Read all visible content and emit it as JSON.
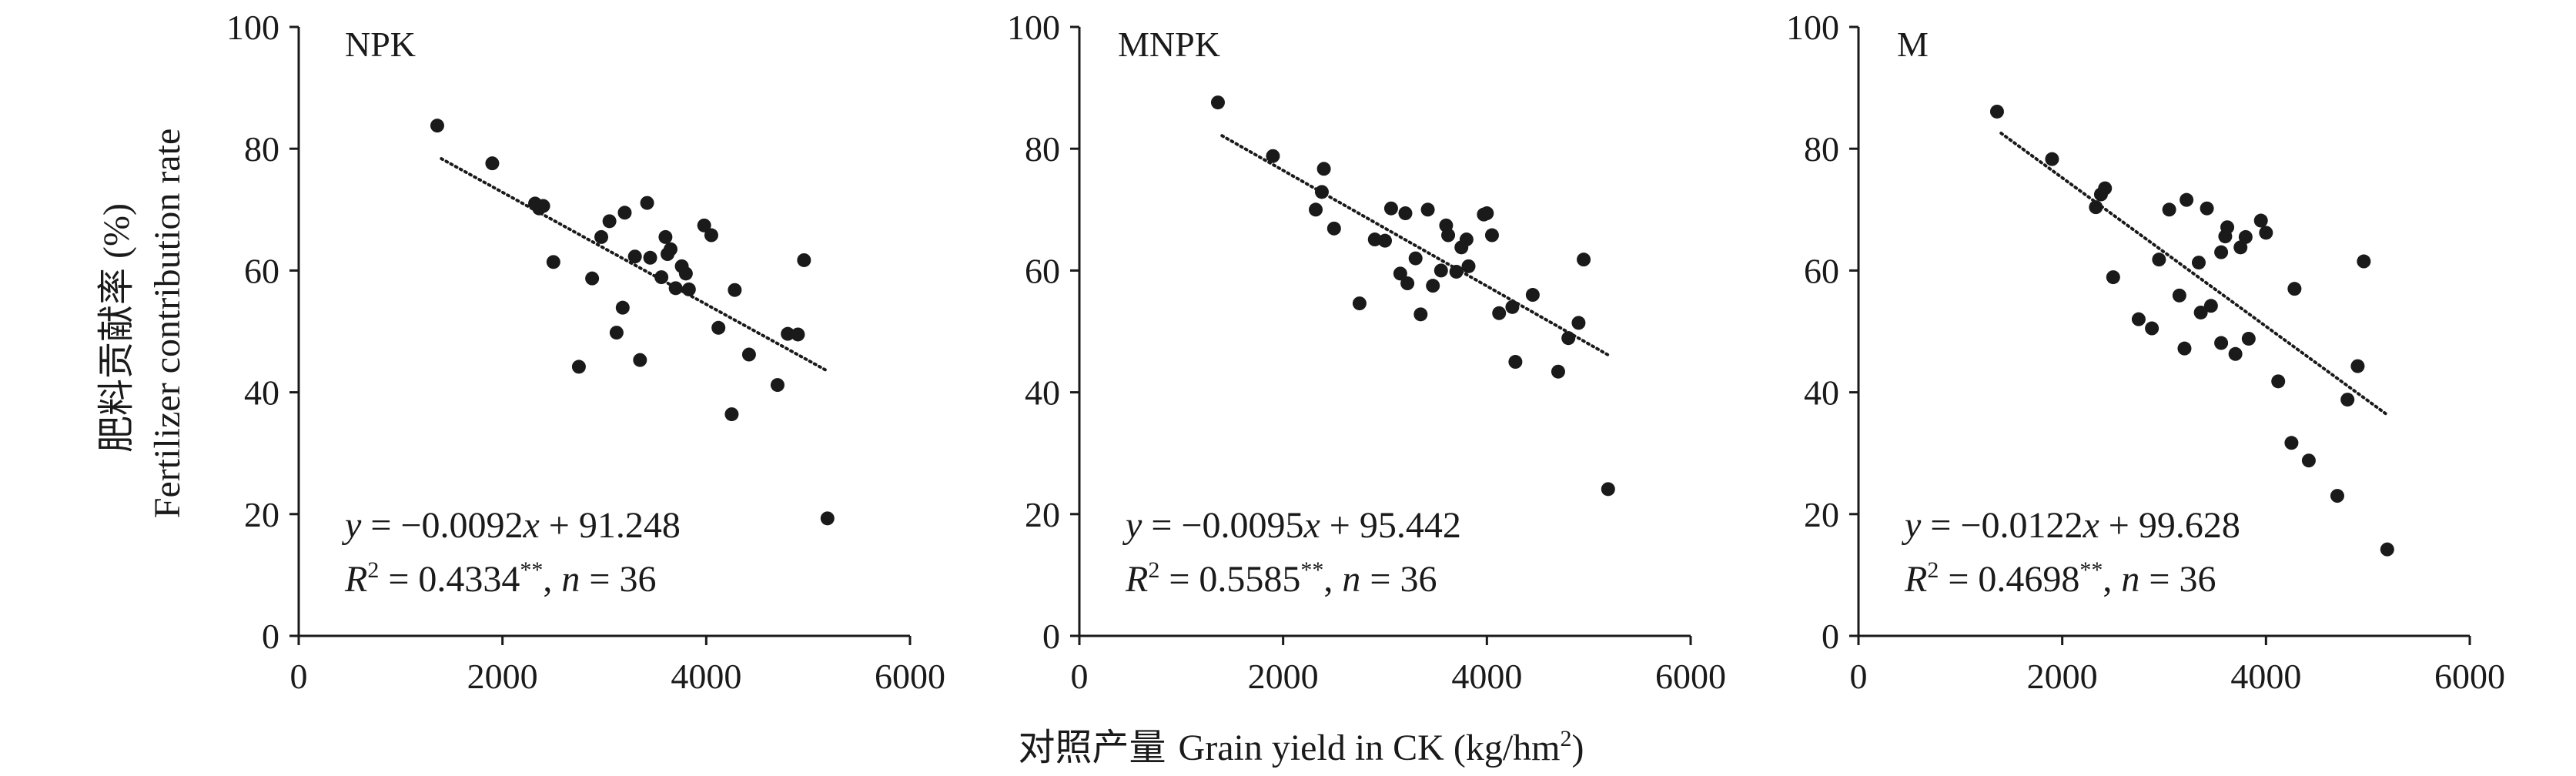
{
  "figure": {
    "ylabel_cn": "肥料贡献率 (%)",
    "ylabel_en": "Fertilizer contribution rate",
    "xlabel_cn": "对照产量",
    "xlabel_en": "Grain yield in CK (kg/hm",
    "xlabel_sup": "2",
    "xlabel_close": ")"
  },
  "chart_data": [
    {
      "type": "scatter",
      "title": "NPK",
      "xlabel": "对照产量 Grain yield in CK (kg/hm2)",
      "ylabel": "肥料贡献率 (%) Fertilizer contribution rate",
      "xlim": [
        0,
        6000
      ],
      "ylim": [
        0,
        100
      ],
      "xticks": [
        0,
        2000,
        4000,
        6000
      ],
      "yticks": [
        0,
        20,
        40,
        60,
        80,
        100
      ],
      "grid": false,
      "trendline": {
        "style": "dotted",
        "slope": -0.0092,
        "intercept": 91.248,
        "x_range": [
          1400,
          5200
        ]
      },
      "equation": {
        "y_pre": "y",
        "eq_mid": " = −0.0092",
        "x_var": "x",
        "eq_tail": " + 91.248",
        "r_var": "R",
        "r_sup": "2",
        "r_val": " = 0.4334",
        "sig": "**",
        "n_sep": ", ",
        "n_var": "n",
        "n_val": " = 36"
      },
      "points": [
        [
          1360,
          83.8
        ],
        [
          1900,
          77.6
        ],
        [
          2320,
          71.0
        ],
        [
          2360,
          70.2
        ],
        [
          2400,
          70.6
        ],
        [
          2500,
          61.4
        ],
        [
          2750,
          44.2
        ],
        [
          2880,
          58.7
        ],
        [
          2970,
          65.5
        ],
        [
          3050,
          68.1
        ],
        [
          3120,
          49.8
        ],
        [
          3180,
          53.9
        ],
        [
          3200,
          69.5
        ],
        [
          3300,
          62.3
        ],
        [
          3350,
          45.3
        ],
        [
          3420,
          71.1
        ],
        [
          3450,
          62.1
        ],
        [
          3560,
          58.9
        ],
        [
          3600,
          65.5
        ],
        [
          3620,
          62.7
        ],
        [
          3700,
          57.1
        ],
        [
          3760,
          60.7
        ],
        [
          3800,
          59.5
        ],
        [
          3830,
          56.9
        ],
        [
          3980,
          67.4
        ],
        [
          4050,
          65.8
        ],
        [
          4120,
          50.6
        ],
        [
          4250,
          36.4
        ],
        [
          4280,
          56.8
        ],
        [
          4420,
          46.2
        ],
        [
          4700,
          41.2
        ],
        [
          4800,
          49.6
        ],
        [
          4900,
          49.5
        ],
        [
          4960,
          61.7
        ],
        [
          5190,
          19.3
        ],
        [
          3650,
          63.5
        ]
      ]
    },
    {
      "type": "scatter",
      "title": "MNPK",
      "xlabel": "对照产量 Grain yield in CK (kg/hm2)",
      "ylabel": "肥料贡献率 (%) Fertilizer contribution rate",
      "xlim": [
        0,
        6000
      ],
      "ylim": [
        0,
        100
      ],
      "xticks": [
        0,
        2000,
        4000,
        6000
      ],
      "yticks": [
        0,
        20,
        40,
        60,
        80,
        100
      ],
      "grid": false,
      "trendline": {
        "style": "dotted",
        "slope": -0.0095,
        "intercept": 95.442,
        "x_range": [
          1400,
          5200
        ]
      },
      "equation": {
        "y_pre": "y",
        "eq_mid": " = −0.0095",
        "x_var": "x",
        "eq_tail": " + 95.442",
        "r_var": "R",
        "r_sup": "2",
        "r_val": " = 0.5585",
        "sig": "**",
        "n_sep": ", ",
        "n_var": "n",
        "n_val": " = 36"
      },
      "points": [
        [
          1360,
          87.6
        ],
        [
          1900,
          78.8
        ],
        [
          2320,
          70.0
        ],
        [
          2380,
          72.9
        ],
        [
          2400,
          76.7
        ],
        [
          2500,
          66.9
        ],
        [
          2750,
          54.6
        ],
        [
          2900,
          65.1
        ],
        [
          3000,
          64.9
        ],
        [
          3060,
          70.2
        ],
        [
          3150,
          59.5
        ],
        [
          3200,
          69.4
        ],
        [
          3220,
          57.9
        ],
        [
          3300,
          62.0
        ],
        [
          3350,
          52.8
        ],
        [
          3420,
          70.0
        ],
        [
          3470,
          57.5
        ],
        [
          3550,
          60.0
        ],
        [
          3600,
          67.4
        ],
        [
          3620,
          65.8
        ],
        [
          3700,
          59.8
        ],
        [
          3750,
          63.8
        ],
        [
          3800,
          65.1
        ],
        [
          3820,
          60.7
        ],
        [
          3970,
          69.2
        ],
        [
          4000,
          69.4
        ],
        [
          4050,
          65.8
        ],
        [
          4120,
          53.0
        ],
        [
          4250,
          54.0
        ],
        [
          4280,
          45.0
        ],
        [
          4450,
          56.0
        ],
        [
          4700,
          43.4
        ],
        [
          4800,
          48.9
        ],
        [
          4900,
          51.4
        ],
        [
          4950,
          61.8
        ],
        [
          5190,
          24.1
        ]
      ]
    },
    {
      "type": "scatter",
      "title": "M",
      "xlabel": "对照产量 Grain yield in CK (kg/hm2)",
      "ylabel": "肥料贡献率 (%) Fertilizer contribution rate",
      "xlim": [
        0,
        6000
      ],
      "ylim": [
        0,
        100
      ],
      "xticks": [
        0,
        2000,
        4000,
        6000
      ],
      "yticks": [
        0,
        20,
        40,
        60,
        80,
        100
      ],
      "grid": false,
      "trendline": {
        "style": "dotted",
        "slope": -0.0122,
        "intercept": 99.628,
        "x_range": [
          1400,
          5200
        ]
      },
      "equation": {
        "y_pre": "y",
        "eq_mid": " = −0.0122",
        "x_var": "x",
        "eq_tail": " + 99.628",
        "r_var": "R",
        "r_sup": "2",
        "r_val": " = 0.4698",
        "sig": "**",
        "n_sep": ", ",
        "n_var": "n",
        "n_val": " = 36"
      },
      "points": [
        [
          1360,
          86.1
        ],
        [
          1900,
          78.3
        ],
        [
          2330,
          70.4
        ],
        [
          2380,
          72.5
        ],
        [
          2420,
          73.5
        ],
        [
          2500,
          58.9
        ],
        [
          2750,
          52.0
        ],
        [
          2880,
          50.5
        ],
        [
          2950,
          61.8
        ],
        [
          3050,
          70.0
        ],
        [
          3150,
          55.9
        ],
        [
          3200,
          47.2
        ],
        [
          3220,
          71.6
        ],
        [
          3340,
          61.3
        ],
        [
          3360,
          53.1
        ],
        [
          3420,
          70.2
        ],
        [
          3460,
          54.2
        ],
        [
          3560,
          48.1
        ],
        [
          3600,
          65.6
        ],
        [
          3620,
          67.1
        ],
        [
          3700,
          46.3
        ],
        [
          3750,
          63.8
        ],
        [
          3800,
          65.5
        ],
        [
          3830,
          48.8
        ],
        [
          3950,
          68.2
        ],
        [
          4000,
          66.2
        ],
        [
          4120,
          41.8
        ],
        [
          4250,
          31.7
        ],
        [
          4280,
          57.0
        ],
        [
          4420,
          28.8
        ],
        [
          4700,
          23.0
        ],
        [
          4800,
          38.8
        ],
        [
          4900,
          44.3
        ],
        [
          4960,
          61.5
        ],
        [
          5190,
          14.2
        ],
        [
          3560,
          63.0
        ]
      ]
    }
  ]
}
